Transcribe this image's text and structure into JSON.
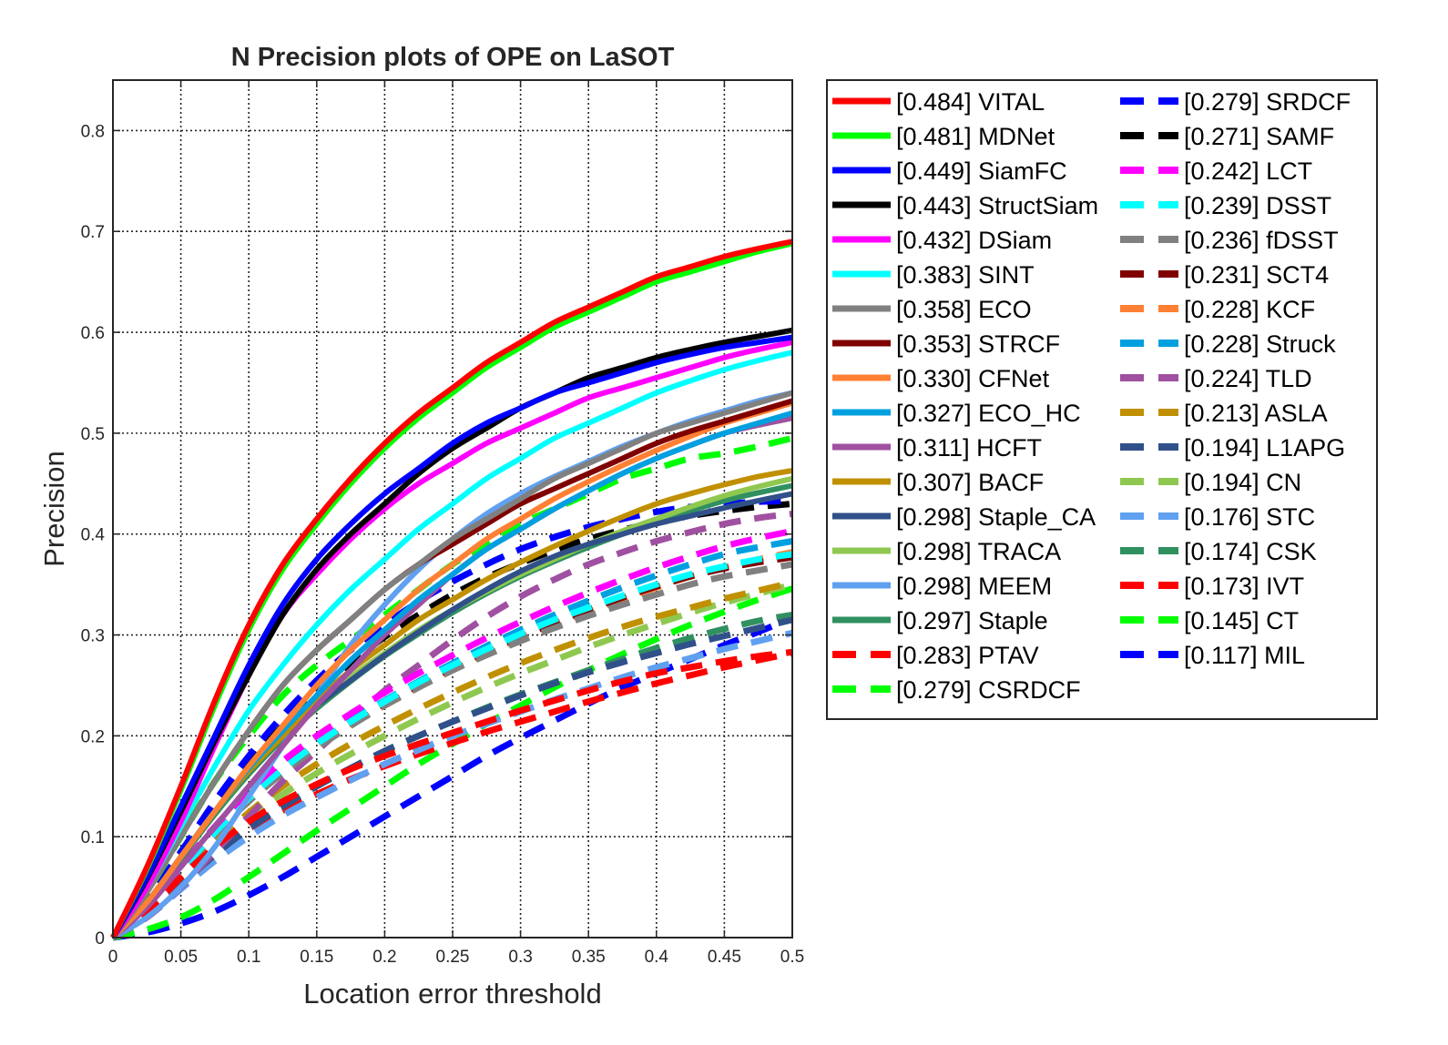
{
  "chart_data": {
    "type": "line",
    "title": "N Precision plots of OPE on LaSOT",
    "xlabel": "Location error threshold",
    "ylabel": "Precision",
    "xlim": [
      0,
      0.5
    ],
    "ylim": [
      0,
      0.85
    ],
    "xticks": [
      0,
      0.05,
      0.1,
      0.15,
      0.2,
      0.25,
      0.3,
      0.35,
      0.4,
      0.45,
      0.5
    ],
    "xtick_labels": [
      "0",
      "0.05",
      "0.1",
      "0.15",
      "0.2",
      "0.25",
      "0.3",
      "0.35",
      "0.4",
      "0.45",
      "0.5"
    ],
    "yticks": [
      0,
      0.1,
      0.2,
      0.3,
      0.4,
      0.5,
      0.6,
      0.7,
      0.8
    ],
    "ytick_labels": [
      "0",
      "0.1",
      "0.2",
      "0.3",
      "0.4",
      "0.5",
      "0.6",
      "0.7",
      "0.8"
    ],
    "grid": true,
    "legend_position": "outside-right",
    "x": [
      0,
      0.025,
      0.05,
      0.075,
      0.1,
      0.125,
      0.15,
      0.175,
      0.2,
      0.225,
      0.25,
      0.275,
      0.3,
      0.325,
      0.35,
      0.375,
      0.4,
      0.425,
      0.45,
      0.475,
      0.5
    ],
    "series": [
      {
        "name": "[0.484] VITAL",
        "color": "#ff0000",
        "dashed": false,
        "values": [
          0,
          0.07,
          0.15,
          0.235,
          0.31,
          0.37,
          0.415,
          0.455,
          0.49,
          0.52,
          0.545,
          0.57,
          0.59,
          0.61,
          0.625,
          0.64,
          0.655,
          0.665,
          0.675,
          0.683,
          0.69
        ]
      },
      {
        "name": "[0.481] MDNet",
        "color": "#00ff00",
        "dashed": false,
        "values": [
          0,
          0.068,
          0.146,
          0.23,
          0.305,
          0.365,
          0.41,
          0.45,
          0.485,
          0.515,
          0.54,
          0.565,
          0.585,
          0.605,
          0.62,
          0.635,
          0.65,
          0.66,
          0.67,
          0.68,
          0.688
        ]
      },
      {
        "name": "[0.449] SiamFC",
        "color": "#0000ff",
        "dashed": false,
        "values": [
          0,
          0.06,
          0.13,
          0.2,
          0.27,
          0.33,
          0.375,
          0.41,
          0.44,
          0.465,
          0.49,
          0.51,
          0.525,
          0.54,
          0.55,
          0.56,
          0.57,
          0.578,
          0.585,
          0.59,
          0.595
        ]
      },
      {
        "name": "[0.443] StructSiam",
        "color": "#000000",
        "dashed": false,
        "values": [
          0,
          0.058,
          0.125,
          0.195,
          0.26,
          0.32,
          0.365,
          0.4,
          0.43,
          0.46,
          0.485,
          0.505,
          0.525,
          0.54,
          0.555,
          0.565,
          0.575,
          0.583,
          0.59,
          0.596,
          0.602
        ]
      },
      {
        "name": "[0.432] DSiam",
        "color": "#ff00ff",
        "dashed": false,
        "values": [
          0,
          0.05,
          0.115,
          0.19,
          0.26,
          0.32,
          0.36,
          0.395,
          0.425,
          0.45,
          0.47,
          0.49,
          0.505,
          0.52,
          0.535,
          0.545,
          0.555,
          0.565,
          0.575,
          0.583,
          0.59
        ]
      },
      {
        "name": "[0.383] SINT",
        "color": "#00ffff",
        "dashed": false,
        "values": [
          0,
          0.05,
          0.11,
          0.17,
          0.225,
          0.27,
          0.31,
          0.345,
          0.375,
          0.405,
          0.43,
          0.455,
          0.475,
          0.495,
          0.51,
          0.525,
          0.54,
          0.552,
          0.563,
          0.572,
          0.58
        ]
      },
      {
        "name": "[0.358] ECO",
        "color": "#808080",
        "dashed": false,
        "values": [
          0,
          0.045,
          0.1,
          0.155,
          0.205,
          0.25,
          0.285,
          0.315,
          0.345,
          0.37,
          0.395,
          0.415,
          0.435,
          0.455,
          0.47,
          0.485,
          0.5,
          0.51,
          0.52,
          0.53,
          0.54
        ]
      },
      {
        "name": "[0.353] STRCF",
        "color": "#800000",
        "dashed": false,
        "values": [
          0,
          0.045,
          0.1,
          0.155,
          0.205,
          0.25,
          0.285,
          0.315,
          0.345,
          0.37,
          0.39,
          0.41,
          0.43,
          0.445,
          0.46,
          0.475,
          0.49,
          0.502,
          0.512,
          0.522,
          0.532
        ]
      },
      {
        "name": "[0.330] CFNet",
        "color": "#ff8033",
        "dashed": false,
        "values": [
          0,
          0.035,
          0.08,
          0.125,
          0.17,
          0.21,
          0.25,
          0.285,
          0.315,
          0.345,
          0.37,
          0.395,
          0.415,
          0.435,
          0.452,
          0.468,
          0.483,
          0.497,
          0.51,
          0.52,
          0.53
        ]
      },
      {
        "name": "[0.327] ECO_HC",
        "color": "#00a0e0",
        "dashed": false,
        "values": [
          0,
          0.035,
          0.08,
          0.125,
          0.168,
          0.205,
          0.24,
          0.275,
          0.305,
          0.335,
          0.36,
          0.385,
          0.405,
          0.425,
          0.443,
          0.46,
          0.475,
          0.488,
          0.5,
          0.51,
          0.52
        ]
      },
      {
        "name": "[0.311] HCFT",
        "color": "#a050a0",
        "dashed": false,
        "values": [
          0,
          0.03,
          0.07,
          0.11,
          0.15,
          0.19,
          0.23,
          0.265,
          0.3,
          0.33,
          0.36,
          0.385,
          0.405,
          0.425,
          0.443,
          0.46,
          0.475,
          0.488,
          0.5,
          0.508,
          0.515
        ]
      },
      {
        "name": "[0.307] BACF",
        "color": "#c09000",
        "dashed": false,
        "values": [
          0,
          0.035,
          0.08,
          0.125,
          0.165,
          0.2,
          0.235,
          0.265,
          0.29,
          0.315,
          0.335,
          0.355,
          0.372,
          0.388,
          0.403,
          0.417,
          0.43,
          0.44,
          0.449,
          0.457,
          0.463
        ]
      },
      {
        "name": "[0.298] Staple_CA",
        "color": "#30508a",
        "dashed": false,
        "values": [
          0,
          0.035,
          0.08,
          0.125,
          0.165,
          0.2,
          0.23,
          0.255,
          0.28,
          0.303,
          0.325,
          0.345,
          0.363,
          0.378,
          0.39,
          0.4,
          0.41,
          0.418,
          0.426,
          0.433,
          0.44
        ]
      },
      {
        "name": "[0.298] TRACA",
        "color": "#8fc850",
        "dashed": false,
        "values": [
          0,
          0.035,
          0.08,
          0.125,
          0.165,
          0.2,
          0.23,
          0.258,
          0.282,
          0.305,
          0.325,
          0.343,
          0.36,
          0.375,
          0.39,
          0.403,
          0.415,
          0.427,
          0.438,
          0.447,
          0.455
        ]
      },
      {
        "name": "[0.298] MEEM",
        "color": "#60a0f0",
        "dashed": false,
        "values": [
          0,
          0.02,
          0.05,
          0.09,
          0.14,
          0.19,
          0.24,
          0.29,
          0.33,
          0.365,
          0.395,
          0.42,
          0.44,
          0.457,
          0.472,
          0.487,
          0.5,
          0.512,
          0.522,
          0.532,
          0.54
        ]
      },
      {
        "name": "[0.297] Staple",
        "color": "#309060",
        "dashed": false,
        "values": [
          0,
          0.033,
          0.078,
          0.122,
          0.162,
          0.197,
          0.227,
          0.254,
          0.279,
          0.301,
          0.322,
          0.341,
          0.358,
          0.373,
          0.387,
          0.4,
          0.412,
          0.423,
          0.433,
          0.441,
          0.448
        ]
      },
      {
        "name": "[0.283] PTAV",
        "color": "#ff0000",
        "dashed": true,
        "values": [
          0,
          0.025,
          0.06,
          0.09,
          0.115,
          0.135,
          0.152,
          0.167,
          0.18,
          0.192,
          0.203,
          0.214,
          0.225,
          0.235,
          0.245,
          0.254,
          0.262,
          0.268,
          0.274,
          0.279,
          0.283
        ]
      },
      {
        "name": "[0.279] CSRDCF",
        "color": "#00ff00",
        "dashed": true,
        "values": [
          0,
          0.045,
          0.1,
          0.155,
          0.2,
          0.24,
          0.27,
          0.295,
          0.32,
          0.345,
          0.37,
          0.39,
          0.41,
          0.425,
          0.44,
          0.455,
          0.465,
          0.475,
          0.48,
          0.487,
          0.495
        ]
      },
      {
        "name": "[0.279] SRDCF",
        "color": "#0000ff",
        "dashed": true,
        "values": [
          0,
          0.038,
          0.085,
          0.135,
          0.18,
          0.22,
          0.255,
          0.285,
          0.31,
          0.333,
          0.353,
          0.37,
          0.385,
          0.397,
          0.407,
          0.415,
          0.422,
          0.427,
          0.43,
          0.432,
          0.433
        ]
      },
      {
        "name": "[0.271] SAMF",
        "color": "#000000",
        "dashed": true,
        "values": [
          0,
          0.036,
          0.082,
          0.128,
          0.172,
          0.21,
          0.243,
          0.272,
          0.298,
          0.32,
          0.34,
          0.357,
          0.371,
          0.384,
          0.395,
          0.404,
          0.412,
          0.418,
          0.423,
          0.427,
          0.43
        ]
      },
      {
        "name": "[0.242] LCT",
        "color": "#ff00ff",
        "dashed": true,
        "values": [
          0,
          0.03,
          0.07,
          0.11,
          0.145,
          0.175,
          0.2,
          0.222,
          0.243,
          0.262,
          0.28,
          0.297,
          0.313,
          0.328,
          0.342,
          0.355,
          0.367,
          0.378,
          0.388,
          0.396,
          0.403
        ]
      },
      {
        "name": "[0.239] DSST",
        "color": "#00ffff",
        "dashed": true,
        "values": [
          0,
          0.028,
          0.066,
          0.104,
          0.138,
          0.167,
          0.192,
          0.214,
          0.234,
          0.253,
          0.27,
          0.286,
          0.301,
          0.315,
          0.327,
          0.339,
          0.35,
          0.36,
          0.368,
          0.375,
          0.38
        ]
      },
      {
        "name": "[0.236] fDSST",
        "color": "#808080",
        "dashed": true,
        "values": [
          0,
          0.028,
          0.065,
          0.102,
          0.135,
          0.163,
          0.188,
          0.21,
          0.23,
          0.248,
          0.265,
          0.28,
          0.294,
          0.307,
          0.319,
          0.33,
          0.34,
          0.35,
          0.358,
          0.364,
          0.37
        ]
      },
      {
        "name": "[0.231] SCT4",
        "color": "#800000",
        "dashed": true,
        "values": [
          0,
          0.03,
          0.068,
          0.106,
          0.14,
          0.168,
          0.192,
          0.213,
          0.232,
          0.25,
          0.267,
          0.283,
          0.298,
          0.312,
          0.325,
          0.337,
          0.348,
          0.358,
          0.366,
          0.372,
          0.377
        ]
      },
      {
        "name": "[0.228] KCF",
        "color": "#ff8033",
        "dashed": true,
        "values": [
          0,
          0.028,
          0.066,
          0.104,
          0.138,
          0.166,
          0.19,
          0.211,
          0.23,
          0.248,
          0.265,
          0.281,
          0.296,
          0.31,
          0.323,
          0.335,
          0.347,
          0.358,
          0.367,
          0.375,
          0.382
        ]
      },
      {
        "name": "[0.228] Struck",
        "color": "#00a0e0",
        "dashed": true,
        "values": [
          0,
          0.028,
          0.066,
          0.104,
          0.138,
          0.167,
          0.192,
          0.215,
          0.235,
          0.254,
          0.272,
          0.289,
          0.305,
          0.32,
          0.334,
          0.347,
          0.359,
          0.37,
          0.38,
          0.387,
          0.393
        ]
      },
      {
        "name": "[0.224] TLD",
        "color": "#a050a0",
        "dashed": true,
        "values": [
          0,
          0.02,
          0.05,
          0.085,
          0.12,
          0.155,
          0.185,
          0.215,
          0.245,
          0.27,
          0.295,
          0.318,
          0.338,
          0.355,
          0.37,
          0.382,
          0.393,
          0.402,
          0.41,
          0.416,
          0.42
        ]
      },
      {
        "name": "[0.213] ASLA",
        "color": "#c09000",
        "dashed": true,
        "values": [
          0,
          0.026,
          0.06,
          0.094,
          0.124,
          0.15,
          0.172,
          0.192,
          0.21,
          0.227,
          0.243,
          0.258,
          0.272,
          0.285,
          0.297,
          0.308,
          0.318,
          0.327,
          0.336,
          0.344,
          0.352
        ]
      },
      {
        "name": "[0.194] L1APG",
        "color": "#30508a",
        "dashed": true,
        "values": [
          0,
          0.022,
          0.052,
          0.082,
          0.108,
          0.13,
          0.15,
          0.168,
          0.185,
          0.2,
          0.214,
          0.227,
          0.24,
          0.252,
          0.263,
          0.273,
          0.282,
          0.291,
          0.299,
          0.307,
          0.315
        ]
      },
      {
        "name": "[0.194] CN",
        "color": "#8fc850",
        "dashed": true,
        "values": [
          0,
          0.025,
          0.058,
          0.09,
          0.118,
          0.142,
          0.163,
          0.182,
          0.2,
          0.217,
          0.233,
          0.248,
          0.262,
          0.275,
          0.288,
          0.3,
          0.311,
          0.322,
          0.332,
          0.341,
          0.35
        ]
      },
      {
        "name": "[0.176] STC",
        "color": "#60a0f0",
        "dashed": true,
        "values": [
          0,
          0.02,
          0.048,
          0.076,
          0.1,
          0.121,
          0.139,
          0.156,
          0.172,
          0.186,
          0.2,
          0.212,
          0.224,
          0.236,
          0.247,
          0.258,
          0.268,
          0.277,
          0.286,
          0.294,
          0.302
        ]
      },
      {
        "name": "[0.174] CSK",
        "color": "#309060",
        "dashed": true,
        "values": [
          0,
          0.022,
          0.052,
          0.082,
          0.108,
          0.13,
          0.15,
          0.168,
          0.185,
          0.2,
          0.214,
          0.228,
          0.241,
          0.253,
          0.265,
          0.276,
          0.287,
          0.297,
          0.306,
          0.314,
          0.32
        ]
      },
      {
        "name": "[0.173] IVT",
        "color": "#ff0000",
        "dashed": true,
        "values": [
          0,
          0.028,
          0.062,
          0.088,
          0.108,
          0.126,
          0.142,
          0.157,
          0.17,
          0.182,
          0.193,
          0.204,
          0.214,
          0.224,
          0.234,
          0.243,
          0.252,
          0.26,
          0.268,
          0.275,
          0.282
        ]
      },
      {
        "name": "[0.145] CT",
        "color": "#00ff00",
        "dashed": true,
        "values": [
          0,
          0.008,
          0.02,
          0.038,
          0.06,
          0.083,
          0.106,
          0.128,
          0.15,
          0.172,
          0.192,
          0.212,
          0.23,
          0.248,
          0.265,
          0.281,
          0.296,
          0.31,
          0.323,
          0.335,
          0.346
        ]
      },
      {
        "name": "[0.117] MIL",
        "color": "#0000ff",
        "dashed": true,
        "values": [
          0,
          0.005,
          0.014,
          0.026,
          0.042,
          0.06,
          0.08,
          0.1,
          0.12,
          0.14,
          0.16,
          0.18,
          0.198,
          0.215,
          0.232,
          0.248,
          0.262,
          0.276,
          0.29,
          0.303,
          0.317
        ]
      }
    ]
  }
}
